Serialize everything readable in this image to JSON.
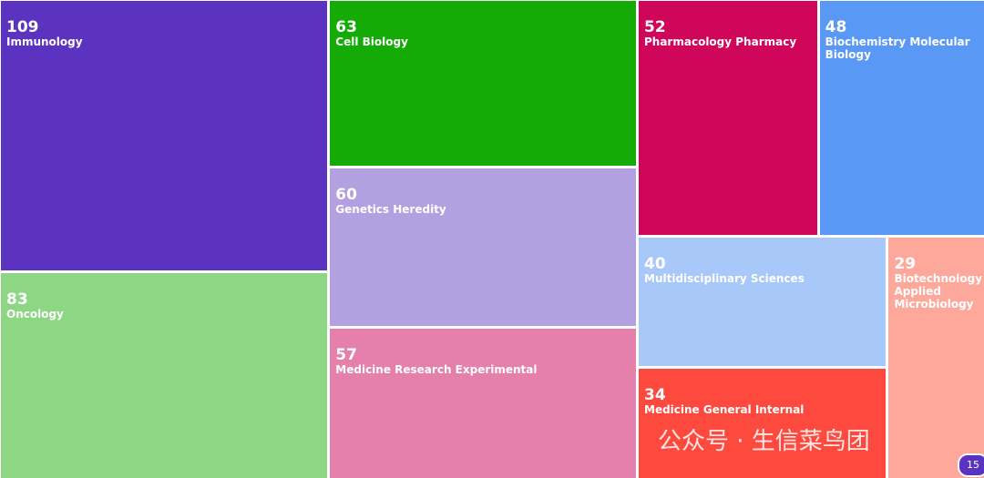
{
  "chart_data": {
    "type": "treemap",
    "categories": [
      "Immunology",
      "Oncology",
      "Cell Biology",
      "Genetics Heredity",
      "Medicine Research Experimental",
      "Pharmacology Pharmacy",
      "Biochemistry Molecular Biology",
      "Multidisciplinary Sciences",
      "Medicine General Internal",
      "Biotechnology Applied Microbiology"
    ],
    "values": [
      109,
      83,
      63,
      60,
      57,
      52,
      48,
      40,
      34,
      29
    ],
    "colors": [
      "#5c33c1",
      "#8cd684",
      "#14ab07",
      "#b3a0e0",
      "#e57fab",
      "#d0065a",
      "#5a98f5",
      "#a7c8f8",
      "#fe4a3e",
      "#fea89c"
    ]
  },
  "watermark": "公众号 · 生信菜鸟团",
  "badge": "15"
}
